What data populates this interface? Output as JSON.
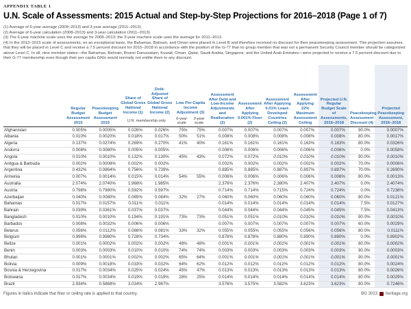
{
  "page": {
    "kicker": "APPENDIX TABLE 1",
    "title": "U.N. Scale of Assessments: 2015 Actual and Step-by-Step Projections for 2016–2018 (Page 1 of 7)",
    "footnotes": [
      "(1) Average of 6-year average (2008–2013) and 3-year average (2011–2013).",
      "(2) Average of 6-year calculation (2008–2013) and 3-year calculation (2011–2013).",
      "(3) The 6-year machine scale uses the average for 2008–2013; the 3-year machine scale uses the average for 2011–2013.",
      "(4) In the 2013–2015 scale of assessments, on an exceptional basis, the Bahamas, Bahrain, and Oman were placed in Level B and therefore received no discount for their peacekeeping assessment. This projection assumes that they will be placed in Level C and receive a 7.5 percent discount for 2015–2018 in accordance with the position of the G-77 that no group member that was not a permanent Security Council member should be categorized above Level C. In all, nine member states—the Bahamas, Bahrain, Brunei Darussalam, Kuwait, Oman, Qatar, Saudi Arabia, Singapore, and the United Arab Emirates—were projected to receive a 7.5 percent discount due to their G-77 membership even though their per capita GNIs would normally not entitle them to any discount."
    ],
    "footer_note": "Figures in italics indicate that floor or ceiling rate is applied to that country.",
    "footer_right": {
      "code": "BG 3023",
      "site": "heritage.org"
    }
  },
  "colors": {
    "header_blue": "#2d6fad",
    "highlight_bg": "#e9edf4",
    "header_rule": "#2b2b2b",
    "row_rule": "#dedede",
    "brand_maroon": "#731013"
  },
  "table": {
    "headers": [
      "Regular Budget Assess­ment 2015",
      "Peacekeeping Budget Assessment 2015",
      "Share of Global Gross National Income (1)",
      "Debt-Adjusted Share of Global Gross National Income (2)",
      "Low Per-Capita Income Adjustment (3)",
      "Assessment After Debt and Low-Income Adjustments and Reallocation (2)",
      "Assessment After Applying 0.001% Floor (2)",
      "Assessment After Applying 0.01% Least-Developed Countries Ceiling (2)",
      "Assessment After Applying 22% Maximum Assessment Ceiling",
      "Projected U.N. Regular Budget Scale of Assessments, 2016–2018",
      "Peacekeeping Assessment Discount (4)",
      "Projected Peacekeeping Assessment, 2016–2018"
    ],
    "subheaders": {
      "membership_note": "U.N. membership only",
      "six_year": "6-year scale",
      "three_year": "3-year scale"
    },
    "rows": [
      {
        "country": "Afghanistan",
        "values": [
          "0.005%",
          "0.0005%",
          "0.026%",
          "0.026%",
          "75%",
          "75%",
          "0.007%",
          "0.007%",
          "0.007%",
          "0.007%",
          "0.007%",
          "90.0%",
          "0.0007%"
        ],
        "italics": []
      },
      {
        "country": "Albania",
        "values": [
          "0.010%",
          "0.0020%",
          "0.018%",
          "0.017%",
          "50%",
          "51%",
          "0.008%",
          "0.008%",
          "0.008%",
          "0.008%",
          "0.008%",
          "80.0%",
          "0.0017%"
        ],
        "italics": []
      },
      {
        "country": "Algeria",
        "values": [
          "0.137%",
          "0.0274%",
          "0.269%",
          "0.270%",
          "41%",
          "40%",
          "0.161%",
          "0.161%",
          "0.161%",
          "0.163%",
          "0.163%",
          "80.0%",
          "0.0326%"
        ],
        "italics": []
      },
      {
        "country": "Andorra",
        "values": [
          "0.008%",
          "0.0080%",
          "0.005%",
          "0.005%",
          "",
          "",
          "0.006%",
          "0.006%",
          "0.006%",
          "0.006%",
          "0.006%",
          "0.0%",
          "0.0058%"
        ],
        "italics": []
      },
      {
        "country": "Angola",
        "values": [
          "0.010%",
          "0.0010%",
          "0.132%",
          "0.130%",
          "45%",
          "43%",
          "0.072%",
          "0.072%",
          "0.010%",
          "0.010%",
          "0.010%",
          "90.0%",
          "0.0010%"
        ],
        "italics": [
          8,
          9,
          10,
          12
        ]
      },
      {
        "country": "Antigua & Barbuda",
        "values": [
          "0.002%",
          "0.0008%",
          "0.002%",
          "0.002%",
          "",
          "",
          "0.002%",
          "0.002%",
          "0.002%",
          "0.002%",
          "0.002%",
          "70.0%",
          "0.0006%"
        ],
        "italics": []
      },
      {
        "country": "Argentina",
        "values": [
          "0.432%",
          "0.0864%",
          "0.756%",
          "0.739%",
          "",
          "",
          "0.885%",
          "0.885%",
          "0.887%",
          "0.897%",
          "0.897%",
          "70.0%",
          "0.2690%"
        ],
        "italics": []
      },
      {
        "country": "Armenia",
        "values": [
          "0.007%",
          "0.0014%",
          "0.015%",
          "0.014%",
          "54%",
          "55%",
          "0.006%",
          "0.006%",
          "0.006%",
          "0.006%",
          "0.006%",
          "80.0%",
          "0.0013%"
        ],
        "italics": []
      },
      {
        "country": "Australia",
        "values": [
          "2.074%",
          "2.0740%",
          "1.968%",
          "1.985%",
          "",
          "",
          "2.376%",
          "2.376%",
          "2.380%",
          "2.407%",
          "2.407%",
          "0.0%",
          "2.4074%"
        ],
        "italics": []
      },
      {
        "country": "Austria",
        "values": [
          "0.798%",
          "0.7980%",
          "0.592%",
          "0.597%",
          "",
          "",
          "0.714%",
          "0.714%",
          "0.715%",
          "0.724%",
          "0.724%",
          "0.0%",
          "0.7238%"
        ],
        "italics": []
      },
      {
        "country": "Azerbaijan",
        "values": [
          "0.040%",
          "0.0080%",
          "0.085%",
          "0.084%",
          "32%",
          "27%",
          "0.060%",
          "0.060%",
          "0.060%",
          "0.060%",
          "0.060%",
          "80.0%",
          "0.0121%"
        ],
        "italics": []
      },
      {
        "country": "Bahamas",
        "values": [
          "0.017%",
          "0.0157%",
          "0.011%",
          "0.011%",
          "",
          "",
          "0.014%",
          "0.014%",
          "0.014%",
          "0.014%",
          "0.014%",
          "7.5%",
          "0.0127%"
        ],
        "italics": []
      },
      {
        "country": "Bahrain",
        "values": [
          "0.039%",
          "0.0361%",
          "0.037%",
          "0.037%",
          "",
          "",
          "0.044%",
          "0.044%",
          "0.044%",
          "0.045%",
          "0.045%",
          "7.5%",
          "0.0413%"
        ],
        "italics": []
      },
      {
        "country": "Bangladesh",
        "values": [
          "0.010%",
          "0.0010%",
          "0.194%",
          "0.191%",
          "73%",
          "73%",
          "0.051%",
          "0.051%",
          "0.010%",
          "0.010%",
          "0.010%",
          "90.0%",
          "0.0010%"
        ],
        "italics": [
          8,
          9,
          10,
          12
        ]
      },
      {
        "country": "Barbados",
        "values": [
          "0.008%",
          "0.0032%",
          "0.006%",
          "0.006%",
          "",
          "",
          "0.007%",
          "0.007%",
          "0.007%",
          "0.007%",
          "0.007%",
          "60.0%",
          "0.0029%"
        ],
        "italics": []
      },
      {
        "country": "Belarus",
        "values": [
          "0.056%",
          "0.0112%",
          "0.086%",
          "0.081%",
          "33%",
          "32%",
          "0.055%",
          "0.055%",
          "0.055%",
          "0.056%",
          "0.056%",
          "80.0%",
          "0.0111%"
        ],
        "italics": []
      },
      {
        "country": "Belgium",
        "values": [
          "0.998%",
          "0.9980%",
          "0.728%",
          "0.734%",
          "",
          "",
          "0.878%",
          "0.878%",
          "0.880%",
          "0.890%",
          "0.890%",
          "0.0%",
          "0.8902%"
        ],
        "italics": []
      },
      {
        "country": "Belize",
        "values": [
          "0.001%",
          "0.0002%",
          "0.002%",
          "0.002%",
          "48%",
          "48%",
          "0.001%",
          "0.001%",
          "0.001%",
          "0.001%",
          "0.001%",
          "80.0%",
          "0.0002%"
        ],
        "italics": [
          7,
          8,
          9,
          10,
          12
        ]
      },
      {
        "country": "Benin",
        "values": [
          "0.003%",
          "0.0003%",
          "0.010%",
          "0.010%",
          "74%",
          "74%",
          "0.003%",
          "0.003%",
          "0.003%",
          "0.003%",
          "0.003%",
          "90.0%",
          "0.0003%"
        ],
        "italics": []
      },
      {
        "country": "Bhutan",
        "values": [
          "0.001%",
          "0.0001%",
          "0.002%",
          "0.002%",
          "65%",
          "64%",
          "0.001%",
          "0.001%",
          "0.001%",
          "0.001%",
          "0.001%",
          "90.0%",
          "0.0001%"
        ],
        "italics": [
          7,
          8,
          9,
          10,
          12
        ]
      },
      {
        "country": "Bolivia",
        "values": [
          "0.009%",
          "0.0018%",
          "0.033%",
          "0.032%",
          "64%",
          "62%",
          "0.012%",
          "0.012%",
          "0.012%",
          "0.012%",
          "0.012%",
          "80.0%",
          "0.0024%"
        ],
        "italics": []
      },
      {
        "country": "Bosnia & Herzegovina",
        "values": [
          "0.017%",
          "0.0034%",
          "0.025%",
          "0.024%",
          "45%",
          "47%",
          "0.013%",
          "0.013%",
          "0.013%",
          "0.013%",
          "0.013%",
          "80.0%",
          "0.0026%"
        ],
        "italics": []
      },
      {
        "country": "Botswana",
        "values": [
          "0.017%",
          "0.0034%",
          "0.019%",
          "0.019%",
          "28%",
          "25%",
          "0.014%",
          "0.014%",
          "0.014%",
          "0.014%",
          "0.014%",
          "80.0%",
          "0.0029%"
        ],
        "italics": []
      },
      {
        "country": "Brazil",
        "values": [
          "2.934%",
          "0.5868%",
          "3.034%",
          "2.987%",
          "",
          "",
          "3.576%",
          "3.575%",
          "3.582%",
          "3.623%",
          "3.623%",
          "80.0%",
          "0.7246%"
        ],
        "italics": []
      }
    ]
  }
}
